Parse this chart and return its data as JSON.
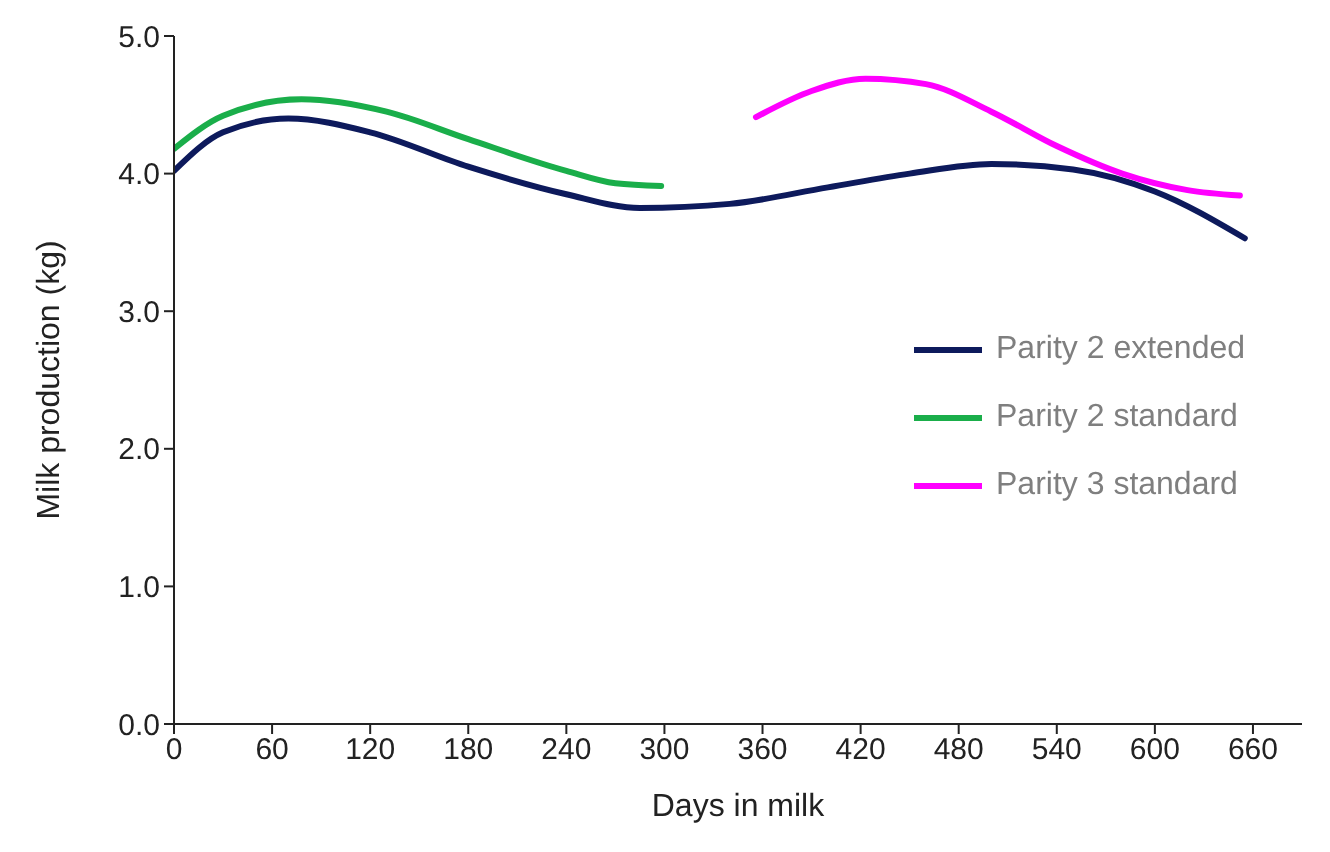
{
  "chart_data": {
    "type": "line",
    "xlabel": "Days in milk",
    "ylabel": "Milk production (kg)",
    "xlim": [
      0,
      690
    ],
    "xticks": [
      0,
      60,
      120,
      180,
      240,
      300,
      360,
      420,
      480,
      540,
      600,
      660
    ],
    "ylim": [
      0,
      5
    ],
    "yticks": [
      {
        "value": 0,
        "label": "0.0"
      },
      {
        "value": 1,
        "label": "1.0"
      },
      {
        "value": 2,
        "label": "2.0"
      },
      {
        "value": 3,
        "label": "3.0"
      },
      {
        "value": 4,
        "label": "4.0"
      },
      {
        "value": 5,
        "label": "5.0"
      }
    ],
    "legend": "right",
    "marker": "none",
    "line_style": "solid",
    "series": [
      {
        "name": "Parity 2 extended",
        "color": "#0d1a5c",
        "x": [
          0,
          30,
          70,
          120,
          180,
          240,
          285,
          340,
          400,
          450,
          500,
          550,
          600,
          655
        ],
        "values": [
          4.02,
          4.3,
          4.4,
          4.3,
          4.05,
          3.85,
          3.75,
          3.78,
          3.9,
          4.0,
          4.07,
          4.03,
          3.87,
          3.53
        ]
      },
      {
        "name": "Parity 2 standard",
        "color": "#1aae4a",
        "x": [
          0,
          30,
          78,
          130,
          180,
          240,
          270,
          298
        ],
        "values": [
          4.18,
          4.42,
          4.54,
          4.45,
          4.25,
          4.02,
          3.93,
          3.91
        ]
      },
      {
        "name": "Parity 3 standard",
        "color": "#ff00ff",
        "x": [
          356,
          390,
          423,
          460,
          500,
          540,
          580,
          620,
          652
        ],
        "values": [
          4.41,
          4.6,
          4.69,
          4.65,
          4.45,
          4.2,
          4.0,
          3.88,
          3.84
        ]
      }
    ]
  }
}
